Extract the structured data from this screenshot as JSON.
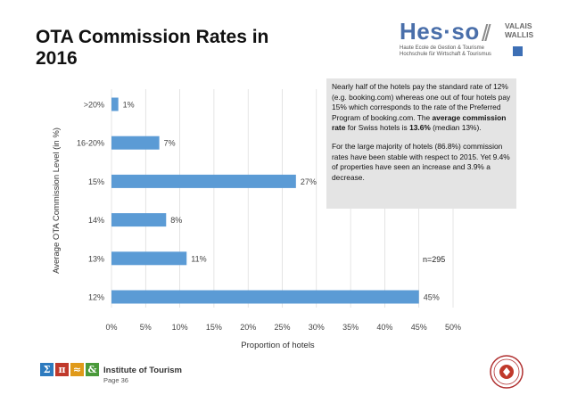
{
  "title": "OTA Commission Rates in 2016",
  "logo": {
    "hes": "Hes·so",
    "slashes": "//",
    "valais": "VALAIS",
    "wallis": "WALLIS",
    "line1": "Haute Ecole de Gestion & Tourisme",
    "line2": "Hochschule für Wirtschaft & Tourismus"
  },
  "info": {
    "p1_a": "Nearly half of the hotels pay the standard rate of 12% (e.g. booking.com) whereas one out of four hotels pay 15% which corresponds to the rate of the Preferred Program of booking.com. The ",
    "p1_b": "average commission rate",
    "p1_c": " for Swiss hotels is ",
    "p1_d": "13.6%",
    "p1_e": " (median 13%).",
    "p2": "For the large majority of hotels (86.8%) commission rates have been stable with respect to 2015. Yet 9.4% of properties have seen an increase and 3.9% a decrease."
  },
  "n_label": "n=295",
  "footer": {
    "icons": [
      {
        "glyph": "Σ",
        "name": "sigma-icon",
        "color": "#2e7bbf"
      },
      {
        "glyph": "π",
        "name": "pi-icon",
        "color": "#c0392b"
      },
      {
        "glyph": "≈",
        "name": "approx-icon",
        "color": "#e09a1a"
      },
      {
        "glyph": "&",
        "name": "ampersand-icon",
        "color": "#4a9a3a"
      }
    ],
    "institute": "Institute of Tourism",
    "page": "Page 36"
  },
  "chart_data": {
    "type": "bar",
    "orientation": "horizontal",
    "categories": [
      ">20%",
      "16-20%",
      "15%",
      "14%",
      "13%",
      "12%"
    ],
    "values": [
      1,
      7,
      27,
      8,
      11,
      45
    ],
    "value_labels": [
      "1%",
      "7%",
      "27%",
      "8%",
      "11%",
      "45%"
    ],
    "xticks": [
      "0%",
      "5%",
      "10%",
      "15%",
      "20%",
      "25%",
      "30%",
      "35%",
      "40%",
      "45%",
      "50%"
    ],
    "xlim": [
      0,
      50
    ],
    "xlabel": "Proportion of hotels",
    "ylabel": "Average OTA Commission Level (in %)",
    "bar_color": "#5b9bd5",
    "grid": true
  }
}
